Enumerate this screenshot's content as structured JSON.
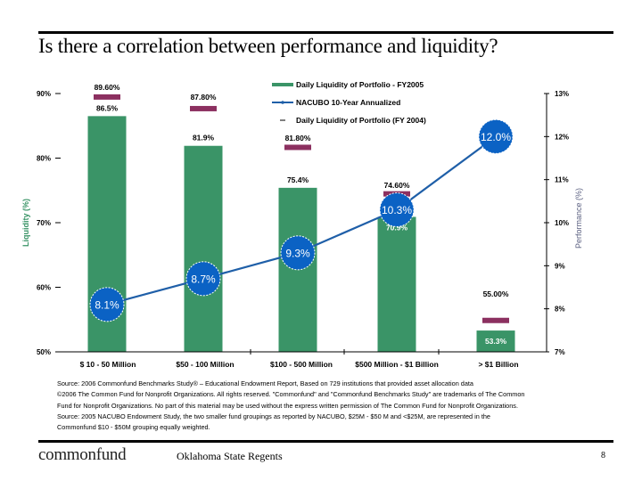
{
  "slide": {
    "title": "Is there a correlation between performance and liquidity?",
    "source_lines": [
      "Source: 2006 Commonfund Benchmarks Study® – Educational Endowment Report, Based on 729 institutions that provided asset allocation data",
      "©2006 The Common Fund for Nonprofit Organizations. All rights reserved. \"Commonfund\" and \"Commonfund Benchmarks Study\" are trademarks of The Common",
      "Fund for Nonprofit Organizations. No part of this material may be used without the express written permission of The Common Fund for Nonprofit Organizations.",
      "Source: 2005 NACUBO Endowment Study, the two smaller fund  groupings as reported by NACUBO, $25M - $50 M and <$25M, are represented in the",
      "Commonfund $10 - $50M grouping equally weighted."
    ],
    "footer": {
      "logo": "commonfund",
      "organization": "Oklahoma State Regents",
      "page_number": "8"
    }
  },
  "colors": {
    "bar": "#3a9467",
    "line": "#1f5fa8",
    "bubble": "#0b62c4",
    "marker_2004": "#8c3060",
    "left_axis_title": "#3a9467",
    "right_axis_title": "#5a5f80"
  },
  "chart_data": {
    "type": "bar",
    "title": "",
    "categories": [
      "$ 10 - 50 Million",
      "$50 - 100 Million",
      "$100 - 500 Million",
      "$500 Million - $1 Billion",
      "> $1 Billion"
    ],
    "series": [
      {
        "name": "Daily Liquidity of Portfolio - FY2005",
        "type": "bar",
        "axis": "left",
        "values": [
          86.5,
          81.9,
          75.4,
          70.9,
          53.3
        ],
        "labels": [
          "86.5%",
          "81.9%",
          "75.4%",
          "70.9%",
          "53.3%"
        ]
      },
      {
        "name": "NACUBO 10-Year Annualized",
        "type": "line",
        "axis": "right",
        "values": [
          8.1,
          8.7,
          9.3,
          10.3,
          12.0
        ],
        "labels": [
          "8.1%",
          "8.7%",
          "9.3%",
          "10.3%",
          "12.0%"
        ]
      },
      {
        "name": "Daily Liquidity of Portfolio (FY 2004)",
        "type": "marker",
        "axis": "left",
        "values": [
          89.6,
          87.8,
          81.8,
          74.6,
          55.0
        ],
        "labels": [
          "89.60%",
          "87.80%",
          "81.80%",
          "74.60%",
          "55.00%"
        ]
      }
    ],
    "left_axis": {
      "label": "Liquidity (%)",
      "range": [
        50,
        90
      ],
      "ticks": [
        50,
        60,
        70,
        80,
        90
      ],
      "tick_labels": [
        "50%",
        "60%",
        "70%",
        "80%",
        "90%"
      ]
    },
    "right_axis": {
      "label": "Performance (%)",
      "range": [
        7,
        13
      ],
      "ticks": [
        7,
        8,
        9,
        10,
        11,
        12,
        13
      ],
      "tick_labels": [
        "7%",
        "8%",
        "9%",
        "10%",
        "11%",
        "12%",
        "13%"
      ]
    },
    "legend": {
      "placement": "top-center",
      "entries": [
        "Daily Liquidity of Portfolio - FY2005",
        "NACUBO 10-Year Annualized",
        "Daily Liquidity of Portfolio (FY 2004)"
      ]
    },
    "grid": false
  }
}
